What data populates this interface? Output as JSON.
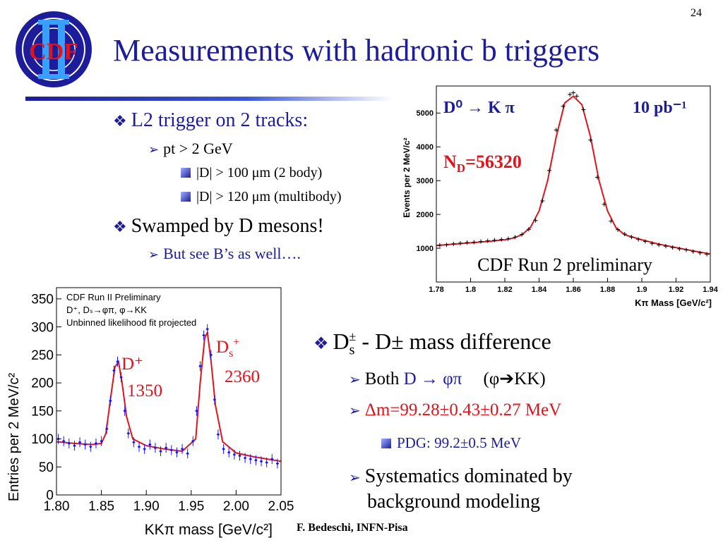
{
  "slide": {
    "number": "24",
    "title": "Measurements with hadronic b triggers",
    "footer": "F. Bedeschi, INFN-Pisa",
    "logo_text": "CDF"
  },
  "bullets_top": {
    "l1": "L2 trigger on 2 tracks:",
    "l1_sub": "pt > 2 GeV",
    "l1_sub_a": "|D| > 100 μm (2 body)",
    "l1_sub_b": "|D| > 120 μm (multibody)",
    "l2": "Swamped by D mesons!",
    "l2_sub": "But see B’s as well…."
  },
  "bullets_right": {
    "head_main": "D",
    "head_sub": "s",
    "head_sup": "±",
    "head_rest": "- D± mass difference",
    "both_pre": "Both",
    "both_D": "D",
    "both_arrow": "→",
    "both_phipi": "φπ",
    "both_paren": "(φ➔KK)",
    "dm": "Δm=99.28±0.43±0.27 MeV",
    "pdg": "PDG: 99.2±0.5 MeV",
    "syst1": "Systematics dominated by",
    "syst2": "background modeling"
  },
  "colors": {
    "title": "#1d1d9b",
    "accent_red": "#e0141e",
    "fit_red": "#e0141e",
    "data_blue": "#1414ff"
  },
  "chart_data": [
    {
      "type": "line",
      "title": "",
      "xlabel": "Kπ Mass [GeV/c²]",
      "ylabel": "Events per 2 MeV/c²",
      "xlim": [
        1.78,
        1.94
      ],
      "ylim": [
        0,
        5800
      ],
      "x_ticks": [
        "1.78",
        "1.8",
        "1.82",
        "1.84",
        "1.86",
        "1.88",
        "1.9",
        "1.92",
        "1.94"
      ],
      "y_ticks": [
        "1000",
        "2000",
        "3000",
        "4000",
        "5000"
      ],
      "annotations": {
        "decay": "D⁰ → K π",
        "lumi": "10 pb⁻¹",
        "yield": "N",
        "yield_sub": "D",
        "yield_val": "=56320",
        "caption": "CDF Run 2 preliminary"
      },
      "series": [
        {
          "kind": "fit",
          "x": [
            1.78,
            1.79,
            1.8,
            1.81,
            1.82,
            1.825,
            1.83,
            1.835,
            1.84,
            1.845,
            1.85,
            1.855,
            1.86,
            1.865,
            1.87,
            1.875,
            1.88,
            1.885,
            1.89,
            1.9,
            1.91,
            1.92,
            1.93,
            1.94
          ],
          "values": [
            1080,
            1120,
            1160,
            1200,
            1250,
            1300,
            1400,
            1620,
            2100,
            3000,
            4300,
            5300,
            5500,
            5250,
            4300,
            3000,
            2100,
            1600,
            1400,
            1250,
            1120,
            1020,
            920,
            830
          ]
        },
        {
          "kind": "data",
          "x": [
            1.782,
            1.786,
            1.79,
            1.794,
            1.798,
            1.802,
            1.806,
            1.81,
            1.814,
            1.818,
            1.822,
            1.826,
            1.83,
            1.834,
            1.838,
            1.842,
            1.846,
            1.85,
            1.854,
            1.858,
            1.86,
            1.862,
            1.866,
            1.87,
            1.874,
            1.878,
            1.882,
            1.886,
            1.89,
            1.894,
            1.898,
            1.902,
            1.906,
            1.91,
            1.914,
            1.918,
            1.922,
            1.926,
            1.93,
            1.934,
            1.938
          ],
          "values": [
            1090,
            1100,
            1130,
            1150,
            1170,
            1180,
            1200,
            1220,
            1240,
            1260,
            1280,
            1330,
            1410,
            1560,
            1820,
            2400,
            3300,
            4500,
            5200,
            5550,
            5600,
            5500,
            5100,
            4200,
            3100,
            2300,
            1800,
            1550,
            1420,
            1330,
            1260,
            1200,
            1140,
            1100,
            1060,
            1020,
            980,
            950,
            900,
            860,
            820
          ]
        }
      ]
    },
    {
      "type": "line",
      "title": "",
      "legend_text": [
        "CDF Run II Preliminary",
        "D⁺, Dₛ→φπ, φ→KK",
        "Unbinned likelihood fit projected"
      ],
      "xlabel": "KKπ mass [GeV/c²]",
      "ylabel": "Entries per 2 MeV/c²",
      "xlim": [
        1.8,
        2.05
      ],
      "ylim": [
        0,
        370
      ],
      "x_ticks": [
        "1.80",
        "1.85",
        "1.90",
        "1.95",
        "2.00",
        "2.05"
      ],
      "y_ticks": [
        "0",
        "50",
        "100",
        "150",
        "200",
        "250",
        "300",
        "350"
      ],
      "annotations": {
        "dplus_label": "D⁺",
        "dplus_yield": "1350",
        "ds_label": "D",
        "ds_sub": "s",
        "ds_sup": "+",
        "ds_yield": "2360"
      },
      "series": [
        {
          "kind": "fit",
          "x": [
            1.8,
            1.82,
            1.84,
            1.85,
            1.855,
            1.86,
            1.865,
            1.869,
            1.873,
            1.878,
            1.885,
            1.9,
            1.92,
            1.94,
            1.955,
            1.96,
            1.965,
            1.968,
            1.972,
            1.977,
            1.985,
            2.0,
            2.02,
            2.05
          ],
          "values": [
            95,
            92,
            90,
            92,
            110,
            170,
            228,
            238,
            200,
            140,
            100,
            88,
            82,
            78,
            100,
            200,
            280,
            290,
            240,
            160,
            95,
            75,
            68,
            60
          ]
        },
        {
          "kind": "data",
          "x": [
            1.802,
            1.808,
            1.814,
            1.82,
            1.826,
            1.832,
            1.838,
            1.844,
            1.85,
            1.856,
            1.86,
            1.864,
            1.868,
            1.872,
            1.876,
            1.88,
            1.886,
            1.892,
            1.898,
            1.904,
            1.91,
            1.916,
            1.922,
            1.928,
            1.934,
            1.94,
            1.946,
            1.952,
            1.956,
            1.96,
            1.964,
            1.968,
            1.972,
            1.976,
            1.98,
            1.986,
            1.992,
            1.998,
            2.004,
            2.01,
            2.016,
            2.022,
            2.028,
            2.034,
            2.04,
            2.046
          ],
          "values": [
            100,
            96,
            92,
            88,
            94,
            90,
            86,
            92,
            96,
            118,
            168,
            222,
            238,
            210,
            150,
            110,
            94,
            86,
            82,
            90,
            84,
            78,
            84,
            80,
            76,
            82,
            74,
            96,
            150,
            230,
            285,
            296,
            250,
            170,
            108,
            82,
            76,
            72,
            70,
            66,
            64,
            62,
            60,
            58,
            64,
            56
          ]
        }
      ]
    }
  ]
}
